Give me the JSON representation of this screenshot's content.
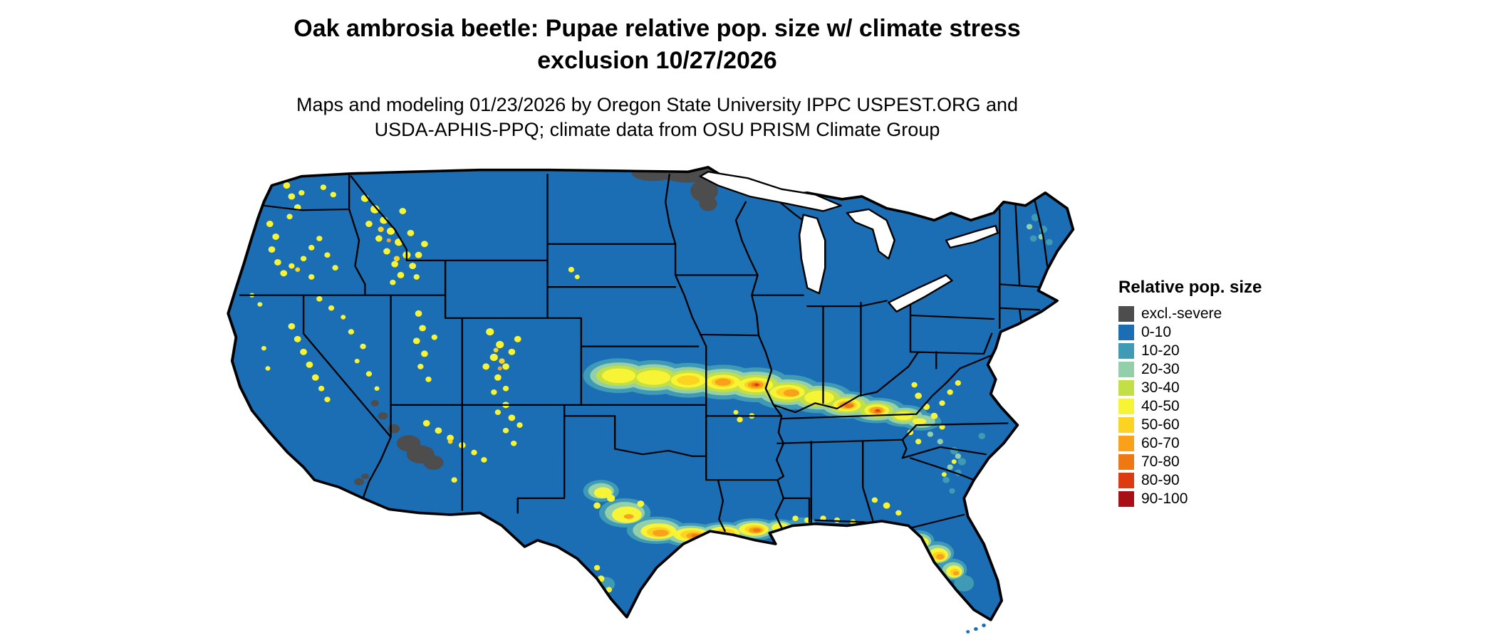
{
  "title": {
    "line1": "Oak ambrosia beetle: Pupae relative pop. size w/ climate stress",
    "line2": "exclusion 10/27/2026"
  },
  "subtitle": {
    "line1": "Maps and modeling 01/23/2026 by Oregon State University IPPC USPEST.ORG and",
    "line2": "USDA-APHIS-PPQ; climate data from OSU PRISM Climate Group"
  },
  "legend": {
    "title": "Relative pop. size",
    "items": [
      {
        "label": "excl.-severe",
        "color": "#4d4d4d"
      },
      {
        "label": "0-10",
        "color": "#1b6db4"
      },
      {
        "label": "10-20",
        "color": "#3f9ab5"
      },
      {
        "label": "20-30",
        "color": "#93cfa9"
      },
      {
        "label": "30-40",
        "color": "#c3df46"
      },
      {
        "label": "40-50",
        "color": "#f7f436"
      },
      {
        "label": "50-60",
        "color": "#fbd320"
      },
      {
        "label": "60-70",
        "color": "#f9a11b"
      },
      {
        "label": "70-80",
        "color": "#f07813"
      },
      {
        "label": "80-90",
        "color": "#dc3a10"
      },
      {
        "label": "90-100",
        "color": "#a81016"
      }
    ]
  },
  "map": {
    "region": "Continental United States",
    "base_color": "#1b6db4",
    "excluded_color": "#4d4d4d",
    "border_color": "#000000",
    "background_color": "#ffffff"
  }
}
